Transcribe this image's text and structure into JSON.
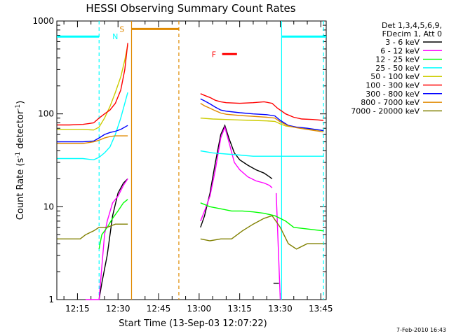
{
  "chart_data": {
    "type": "line",
    "title": "HESSI Observing Summary Count Rates",
    "xlabel": "Start Time (13-Sep-03 12:07:22)",
    "ylabel_main": "Count Rate (s",
    "ylabel_sup1": "-1",
    "ylabel_mid": " detector",
    "ylabel_sup2": "-1",
    "ylabel_end": ")",
    "y_scale": "log",
    "ylim": [
      1,
      1000
    ],
    "xlim_minutes": [
      727.37,
      827.0
    ],
    "x_tick_labels": [
      "12:15",
      "12:30",
      "12:45",
      "13:00",
      "13:15",
      "13:30",
      "13:45"
    ],
    "x_ticks_minutes": [
      735,
      750,
      765,
      780,
      795,
      810,
      825
    ],
    "y_tick_labels": [
      "1",
      "10",
      "100",
      "1000"
    ],
    "y_ticks": [
      1,
      10,
      100,
      1000
    ],
    "legend_header": [
      "Det 1,3,4,5,6,9,",
      "FDecim 1, Att 0"
    ],
    "legend_position": "outside-right",
    "series": [
      {
        "name": "3 - 6 keV",
        "color": "#000000",
        "segments": [
          [
            [
              743,
              1
            ],
            [
              744,
              1.5
            ],
            [
              746,
              3
            ],
            [
              748,
              8
            ],
            [
              750,
              14
            ],
            [
              752,
              18
            ],
            [
              753.6,
              20
            ]
          ],
          [
            [
              780.5,
              6
            ],
            [
              782,
              8
            ],
            [
              784,
              14
            ],
            [
              786,
              30
            ],
            [
              788,
              60
            ],
            [
              789.5,
              75
            ],
            [
              791,
              55
            ],
            [
              793,
              38
            ],
            [
              795,
              32
            ],
            [
              798,
              28
            ],
            [
              801,
              25
            ],
            [
              804,
              23
            ],
            [
              806,
              21
            ],
            [
              807,
              20
            ]
          ],
          [
            [
              807.5,
              1.5
            ],
            [
              809.5,
              1.5
            ]
          ]
        ]
      },
      {
        "name": "6 - 12 keV",
        "color": "#ff00ff",
        "segments": [
          [
            [
              738,
              1
            ],
            [
              743,
              1
            ],
            [
              745,
              5
            ],
            [
              746,
              7
            ],
            [
              748,
              11
            ],
            [
              750,
              13
            ],
            [
              752,
              17
            ],
            [
              753.6,
              20
            ]
          ],
          [
            [
              780.5,
              7
            ],
            [
              782,
              9
            ],
            [
              784,
              13
            ],
            [
              786,
              25
            ],
            [
              788,
              55
            ],
            [
              789.5,
              72
            ],
            [
              791,
              50
            ],
            [
              793,
              30
            ],
            [
              795,
              25
            ],
            [
              798,
              21
            ],
            [
              801,
              19
            ],
            [
              804,
              18
            ],
            [
              806,
              17
            ],
            [
              807,
              16
            ]
          ],
          [
            [
              808.5,
              14
            ],
            [
              810,
              1
            ]
          ]
        ]
      },
      {
        "name": "12 - 25 keV",
        "color": "#00ff00",
        "segments": [
          [
            [
              743,
              3.5
            ],
            [
              744,
              5
            ],
            [
              746,
              6
            ],
            [
              748,
              7.5
            ],
            [
              750,
              9
            ],
            [
              752,
              11
            ],
            [
              753.6,
              12
            ]
          ],
          [
            [
              780.5,
              11
            ],
            [
              784,
              10
            ],
            [
              788,
              9.5
            ],
            [
              792,
              9
            ],
            [
              796,
              9
            ],
            [
              800,
              8.8
            ],
            [
              804,
              8.5
            ],
            [
              808,
              8
            ],
            [
              812,
              7
            ],
            [
              815,
              6
            ],
            [
              826,
              5.5
            ]
          ]
        ]
      },
      {
        "name": "25 - 50 keV",
        "color": "#00ffff",
        "segments": [
          [
            [
              727.5,
              33
            ],
            [
              732,
              33
            ],
            [
              737,
              33
            ],
            [
              741,
              32
            ],
            [
              743,
              34
            ],
            [
              745,
              38
            ],
            [
              747,
              44
            ],
            [
              749,
              60
            ],
            [
              751,
              90
            ],
            [
              752.5,
              130
            ],
            [
              753.6,
              170
            ]
          ],
          [
            [
              780.5,
              40
            ],
            [
              785,
              38
            ],
            [
              790,
              37
            ],
            [
              795,
              36
            ],
            [
              800,
              35
            ],
            [
              805,
              35
            ],
            [
              810,
              35
            ],
            [
              815,
              35
            ],
            [
              820,
              35
            ],
            [
              826,
              35
            ]
          ]
        ]
      },
      {
        "name": "50 - 100 keV",
        "color": "#cccc00",
        "segments": [
          [
            [
              727.5,
              68
            ],
            [
              732,
              68
            ],
            [
              737,
              68
            ],
            [
              741,
              67
            ],
            [
              743,
              72
            ],
            [
              745,
              90
            ],
            [
              747,
              120
            ],
            [
              749,
              170
            ],
            [
              751,
              250
            ],
            [
              752.5,
              380
            ],
            [
              753.6,
              550
            ]
          ],
          [
            [
              780.5,
              90
            ],
            [
              785,
              88
            ],
            [
              790,
              87
            ],
            [
              795,
              86
            ],
            [
              800,
              85
            ],
            [
              805,
              84
            ],
            [
              808,
              83
            ],
            [
              810,
              78
            ],
            [
              812,
              74
            ],
            [
              815,
              72
            ],
            [
              818,
              70
            ],
            [
              822,
              68
            ],
            [
              826,
              66
            ]
          ]
        ]
      },
      {
        "name": "100 - 300 keV",
        "color": "#ff0000",
        "segments": [
          [
            [
              727.5,
              76
            ],
            [
              732,
              76
            ],
            [
              737,
              77
            ],
            [
              741,
              80
            ],
            [
              743,
              90
            ],
            [
              745,
              100
            ],
            [
              747,
              110
            ],
            [
              749,
              130
            ],
            [
              751,
              180
            ],
            [
              752.5,
              300
            ],
            [
              753.6,
              580
            ]
          ],
          [
            [
              780.5,
              165
            ],
            [
              782,
              158
            ],
            [
              784,
              150
            ],
            [
              786,
              140
            ],
            [
              788,
              135
            ],
            [
              790,
              132
            ],
            [
              795,
              130
            ],
            [
              800,
              132
            ],
            [
              804,
              135
            ],
            [
              807,
              130
            ],
            [
              809,
              115
            ],
            [
              812,
              100
            ],
            [
              815,
              92
            ],
            [
              818,
              88
            ],
            [
              822,
              87
            ],
            [
              826,
              85
            ]
          ]
        ]
      },
      {
        "name": "300 - 800 keV",
        "color": "#0000ff",
        "segments": [
          [
            [
              727.5,
              50
            ],
            [
              732,
              50
            ],
            [
              737,
              50
            ],
            [
              741,
              51
            ],
            [
              743,
              55
            ],
            [
              745,
              60
            ],
            [
              747,
              63
            ],
            [
              749,
              65
            ],
            [
              751,
              68
            ],
            [
              753.6,
              75
            ]
          ],
          [
            [
              780.5,
              145
            ],
            [
              782,
              138
            ],
            [
              784,
              128
            ],
            [
              786,
              118
            ],
            [
              788,
              110
            ],
            [
              790,
              107
            ],
            [
              795,
              103
            ],
            [
              800,
              100
            ],
            [
              805,
              98
            ],
            [
              808,
              95
            ],
            [
              810,
              85
            ],
            [
              813,
              75
            ],
            [
              816,
              72
            ],
            [
              820,
              70
            ],
            [
              826,
              66
            ]
          ]
        ]
      },
      {
        "name": "800 - 7000 keV",
        "color": "#e08a00",
        "segments": [
          [
            [
              727.5,
              48
            ],
            [
              732,
              48
            ],
            [
              737,
              48
            ],
            [
              741,
              50
            ],
            [
              743,
              52
            ],
            [
              745,
              55
            ],
            [
              747,
              57
            ],
            [
              749,
              58
            ],
            [
              753.6,
              58
            ]
          ],
          [
            [
              780.5,
              130
            ],
            [
              782,
              122
            ],
            [
              784,
              115
            ],
            [
              786,
              108
            ],
            [
              788,
              102
            ],
            [
              790,
              99
            ],
            [
              795,
              96
            ],
            [
              800,
              94
            ],
            [
              805,
              92
            ],
            [
              808,
              90
            ],
            [
              810,
              82
            ],
            [
              813,
              74
            ],
            [
              816,
              71
            ],
            [
              820,
              68
            ],
            [
              826,
              64
            ]
          ]
        ]
      },
      {
        "name": "7000 - 20000 keV",
        "color": "#808000",
        "segments": [
          [
            [
              727.5,
              4.5
            ],
            [
              732,
              4.5
            ],
            [
              736,
              4.5
            ],
            [
              738,
              5
            ],
            [
              741,
              5.5
            ],
            [
              743,
              6
            ],
            [
              746,
              6
            ],
            [
              749,
              6.5
            ],
            [
              753.6,
              6.5
            ]
          ],
          [
            [
              780.5,
              4.5
            ],
            [
              784,
              4.3
            ],
            [
              788,
              4.5
            ],
            [
              792,
              4.5
            ],
            [
              796,
              5.5
            ],
            [
              800,
              6.5
            ],
            [
              804,
              7.5
            ],
            [
              807,
              8
            ],
            [
              810,
              6
            ],
            [
              813,
              4
            ],
            [
              816,
              3.5
            ],
            [
              820,
              4
            ],
            [
              826,
              4
            ]
          ]
        ]
      }
    ],
    "annotations": [
      {
        "label": "N",
        "color": "#00ffff",
        "x_range_minutes": [
          727.37,
          743.0
        ],
        "y": 680,
        "label_x_minutes": 750
      },
      {
        "label": "N",
        "color": "#00ffff",
        "x_range_minutes": [
          810.5,
          827.0
        ],
        "y": 680,
        "label_x_minutes": null
      },
      {
        "label": "S",
        "color": "#e08a00",
        "x_range_minutes": [
          755.0,
          772.5
        ],
        "y": 820,
        "label_x_minutes": 752.5
      },
      {
        "label": "F",
        "color": "#ff0000",
        "x_range_minutes": [
          788.5,
          794.0
        ],
        "y": 440,
        "label_x_minutes": 786.5
      }
    ],
    "vlines": [
      {
        "x_minutes": 743.0,
        "color": "#00ffff",
        "style": "dashed"
      },
      {
        "x_minutes": 755.0,
        "color": "#e08a00",
        "style": "solid"
      },
      {
        "x_minutes": 772.5,
        "color": "#e08a00",
        "style": "dashed"
      },
      {
        "x_minutes": 810.5,
        "color": "#00ffff",
        "style": "solid"
      },
      {
        "x_minutes": 826.0,
        "color": "#00ffff",
        "style": "dashed"
      }
    ]
  },
  "footer": {
    "generated": "7-Feb-2010 16:43"
  }
}
